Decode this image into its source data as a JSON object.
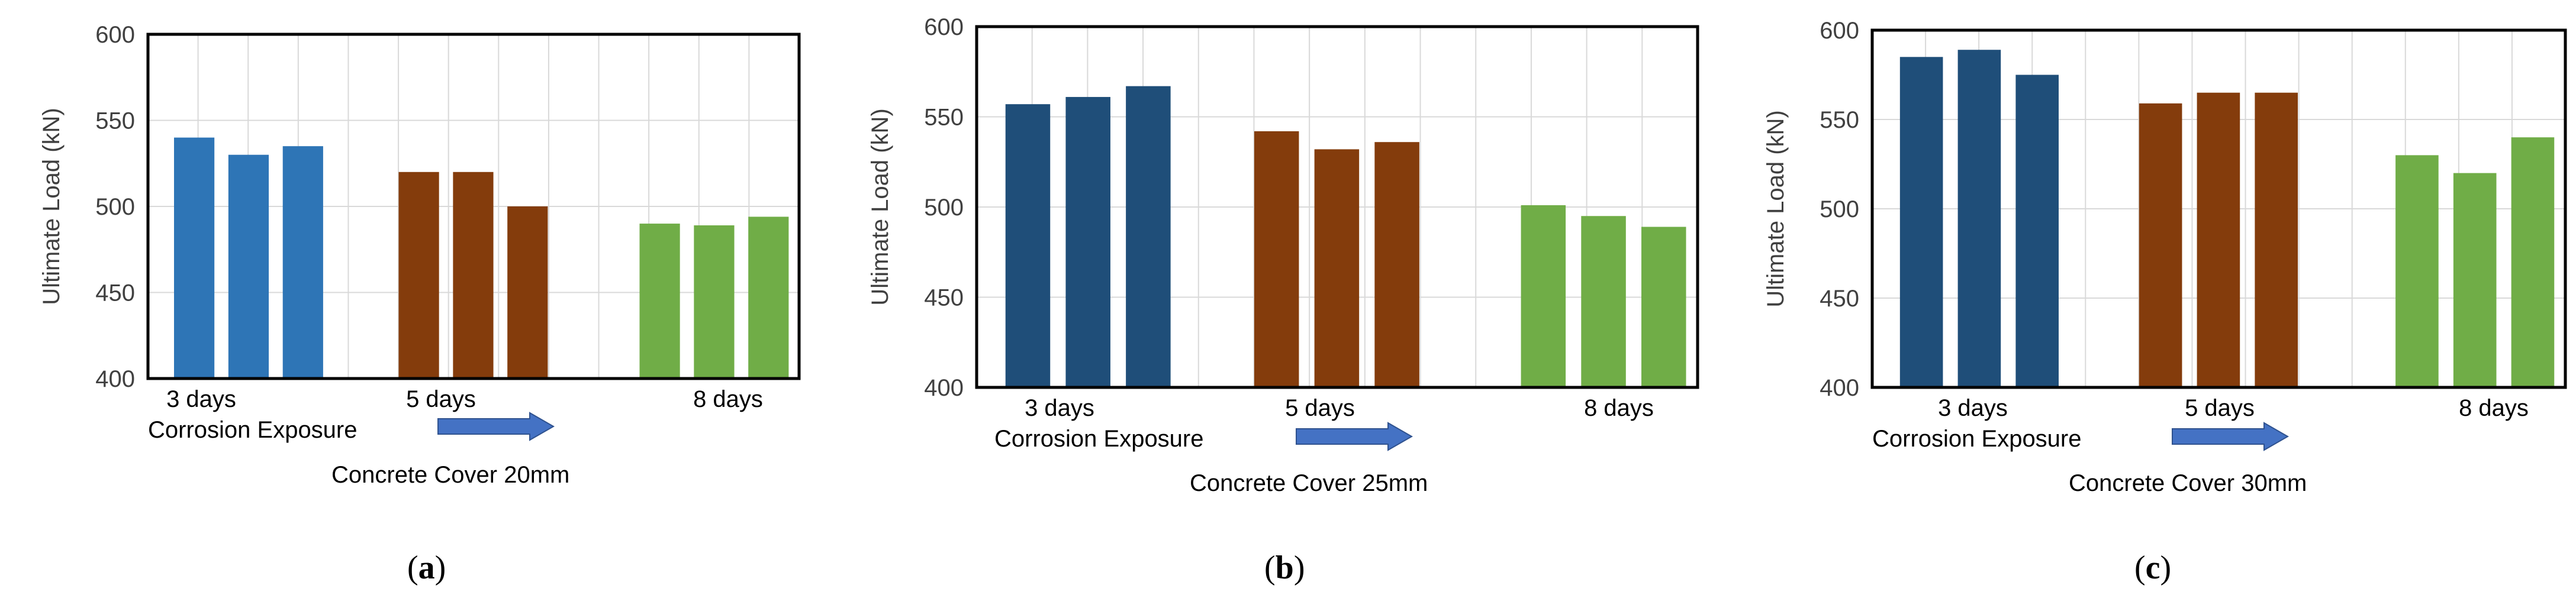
{
  "chart_data": [
    {
      "type": "bar",
      "panel": "a",
      "panel_label": "(a)",
      "panel_letter": "a",
      "ylabel": "Ultimate Load (kN)",
      "ylim": [
        400,
        600
      ],
      "yticks": [
        400,
        450,
        500,
        550,
        600
      ],
      "grid": true,
      "categories": [
        "3 days",
        "5 days",
        "8 days"
      ],
      "values": [
        [
          540,
          530,
          535
        ],
        [
          520,
          520,
          500
        ],
        [
          490,
          489,
          494
        ]
      ],
      "colors": [
        "#2E75B6",
        "#843C0C",
        "#70AD47"
      ],
      "xlabel": "Corrosion Exposure",
      "cover_label": "Concrete Cover 20mm"
    },
    {
      "type": "bar",
      "panel": "b",
      "panel_label": "(b)",
      "panel_letter": "b",
      "ylabel": "Ultimate Load (kN)",
      "ylim": [
        400,
        600
      ],
      "yticks": [
        400,
        450,
        500,
        550,
        600
      ],
      "grid": true,
      "categories": [
        "3 days",
        "5 days",
        "8 days"
      ],
      "values": [
        [
          557,
          561,
          567
        ],
        [
          542,
          532,
          536
        ],
        [
          501,
          495,
          489
        ]
      ],
      "colors": [
        "#1F4E79",
        "#843C0C",
        "#70AD47"
      ],
      "xlabel": "Corrosion Exposure",
      "cover_label": "Concrete Cover 25mm"
    },
    {
      "type": "bar",
      "panel": "c",
      "panel_label": "(c)",
      "panel_letter": "c",
      "ylabel": "Ultimate Load (kN)",
      "ylim": [
        400,
        600
      ],
      "yticks": [
        400,
        450,
        500,
        550,
        600
      ],
      "grid": true,
      "categories": [
        "3 days",
        "5 days",
        "8 days"
      ],
      "values": [
        [
          585,
          589,
          575
        ],
        [
          559,
          565,
          565
        ],
        [
          530,
          520,
          540
        ]
      ],
      "colors": [
        "#1F4E79",
        "#843C0C",
        "#70AD47"
      ],
      "xlabel": "Corrosion Exposure",
      "cover_label": "Concrete Cover 30mm"
    }
  ],
  "arrow_color": "#4472C4"
}
